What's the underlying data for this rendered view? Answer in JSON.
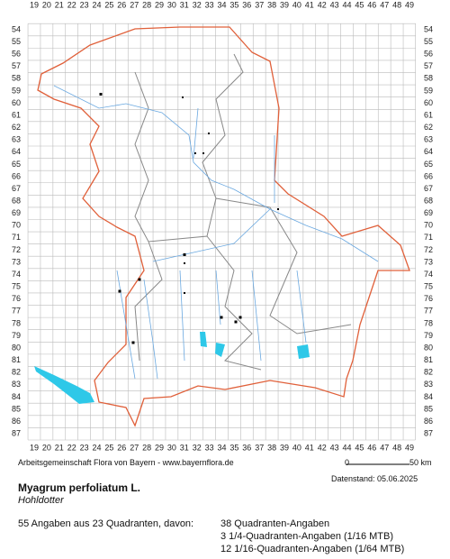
{
  "map": {
    "columns": [
      19,
      20,
      21,
      22,
      23,
      24,
      25,
      26,
      27,
      28,
      29,
      30,
      31,
      32,
      33,
      34,
      35,
      36,
      37,
      38,
      39,
      40,
      41,
      42,
      43,
      44,
      45,
      46,
      47,
      48,
      49
    ],
    "rows": [
      54,
      55,
      56,
      57,
      58,
      59,
      60,
      61,
      62,
      63,
      64,
      65,
      66,
      67,
      68,
      69,
      70,
      71,
      72,
      73,
      74,
      75,
      76,
      77,
      78,
      79,
      80,
      81,
      82,
      83,
      84,
      85,
      86,
      87
    ],
    "credit": "Arbeitsgemeinschaft Flora von Bayern - www.bayernflora.de",
    "scale_start": "0",
    "scale_end": "50 km",
    "date": "Datenstand: 05.06.2025"
  },
  "species": {
    "name": "Myagrum perfoliatum L.",
    "common_name": "Hohldotter"
  },
  "summary": {
    "total": "55 Angaben aus 23 Quadranten, davon:",
    "details": [
      "38 Quadranten-Angaben",
      "3 1/4-Quadranten-Angaben (1/16 MTB)",
      "12 1/16-Quadranten-Angaben (1/64 MTB)"
    ]
  }
}
